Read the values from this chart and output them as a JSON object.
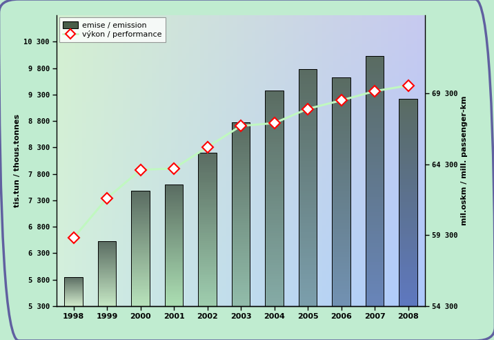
{
  "years": [
    1998,
    1999,
    2000,
    2001,
    2002,
    2003,
    2004,
    2005,
    2006,
    2007,
    2008
  ],
  "emissions": [
    5850,
    6520,
    7480,
    7600,
    8200,
    8780,
    9380,
    9780,
    9630,
    10030,
    9220
  ],
  "performance": [
    59100,
    61900,
    63900,
    64000,
    65500,
    67000,
    67200,
    68200,
    68800,
    69450,
    69850
  ],
  "ylim_left": [
    5300,
    10800
  ],
  "ylim_right": [
    54300,
    74800
  ],
  "yticks_left": [
    5300,
    5800,
    6300,
    6800,
    7300,
    7800,
    8300,
    8800,
    9300,
    9800,
    10300
  ],
  "yticks_right": [
    54300,
    59300,
    64300,
    69300
  ],
  "ytick_labels_right": [
    "54 300",
    "59 300",
    "64 300",
    "69 300"
  ],
  "ytick_labels_left": [
    "5 300",
    "5 800",
    "6 300",
    "6 800",
    "7 300",
    "7 800",
    "8 300",
    "8 800",
    "9 300",
    "9 800",
    "10 300"
  ],
  "ylabel_left": "tis.tun / thous.tonnes",
  "ylabel_right": "mil.oskm / mill. passenger-km",
  "legend_bar": "emise / emission",
  "legend_line": "výkon / performance",
  "bg_outer": "#c0ecd0",
  "bg_plot": "#c8f0d8",
  "border_outer": "#6060a0",
  "line_color": "#c0f8c0",
  "line_marker_edge": "#ff0000",
  "line_marker_fill": "#ffffff"
}
